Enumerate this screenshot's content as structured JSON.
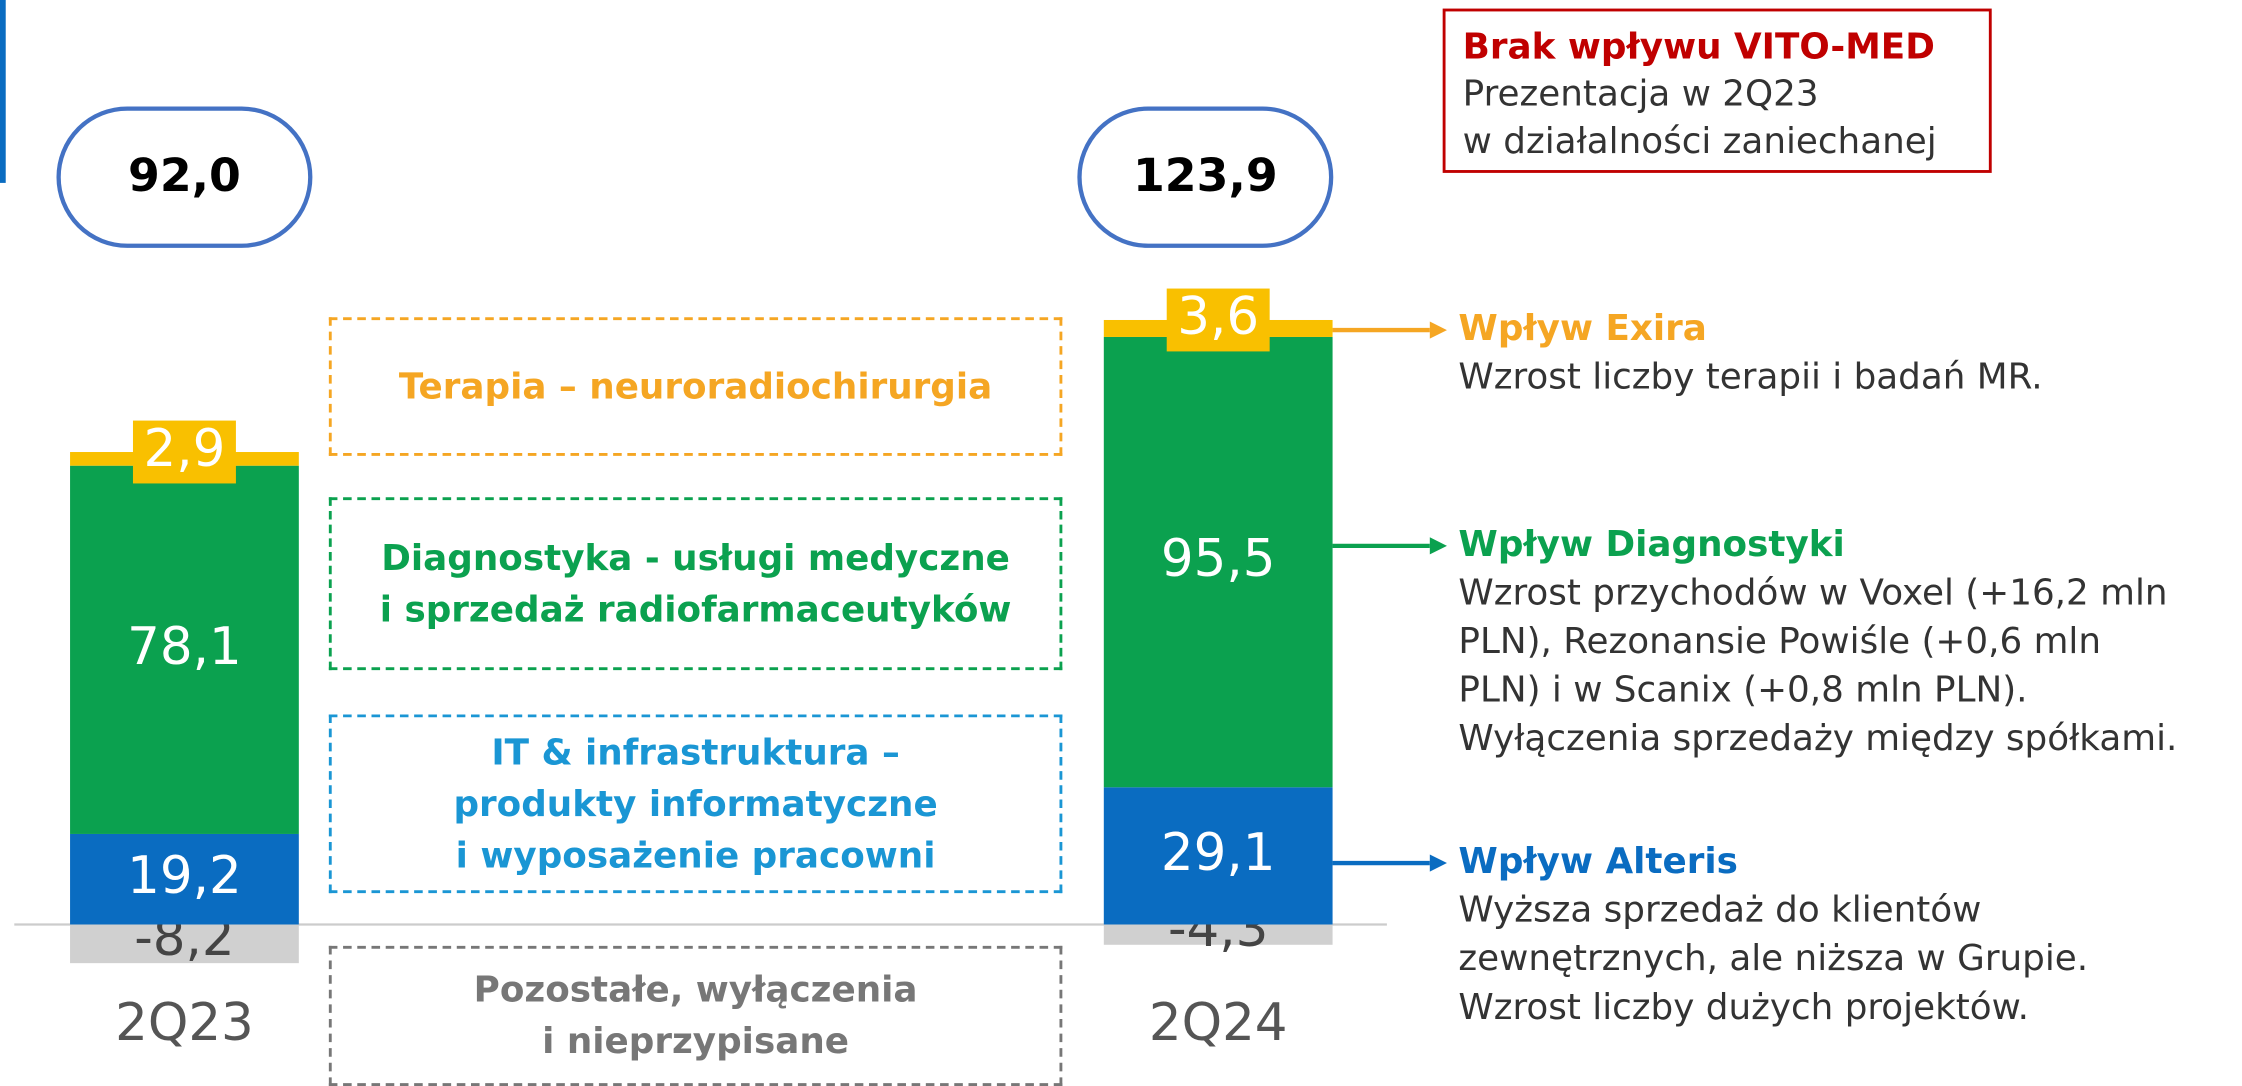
{
  "chart_data": {
    "type": "stacked_bar",
    "categories": [
      "2Q23",
      "2Q24"
    ],
    "ylim": [
      -35,
      195
    ],
    "totals": [
      92.0,
      123.9
    ],
    "total_labels": [
      "92,0",
      "123,9"
    ],
    "series": [
      {
        "name": "Pozostałe, wyłączenia\ni nieprzypisane",
        "color": "#d0d0d0",
        "text_color": "#777777",
        "values": [
          -8.2,
          -4.3
        ],
        "value_labels": [
          "-8,2",
          "-4,3"
        ]
      },
      {
        "name": "IT & infrastruktura –\nprodukty informatyczne\ni  wyposażenie pracowni",
        "color": "#0a6cc1",
        "text_color": "#1a96d4",
        "values": [
          19.2,
          29.1
        ],
        "value_labels": [
          "19,2",
          "29,1"
        ],
        "annotation": {
          "title": "Wpływ Alteris",
          "text": "Wyższa sprzedaż do klientów\nzewnętrznych, ale niższa w Grupie.\nWzrost liczby dużych projektów."
        }
      },
      {
        "name": "Diagnostyka - usługi medyczne\ni sprzedaż radiofarmaceutyków",
        "color": "#0ba14f",
        "text_color": "#0ba14f",
        "values": [
          78.1,
          95.5
        ],
        "value_labels": [
          "78,1",
          "95,5"
        ],
        "annotation": {
          "title": "Wpływ Diagnostyki",
          "text": "Wzrost przychodów w Voxel (+16,2 mln\nPLN), Rezonansie Powiśle (+0,6 mln\nPLN) i w Scanix (+0,8 mln PLN).\nWyłączenia sprzedaży między spółkami."
        }
      },
      {
        "name": "Terapia – neuroradiochirurgia",
        "color": "#f9c000",
        "text_color": "#f5a623",
        "values": [
          2.9,
          3.6
        ],
        "value_labels": [
          "2,9",
          "3,6"
        ],
        "annotation": {
          "title": "Wpływ Exira",
          "text": "Wzrost liczby terapii i badań MR."
        }
      }
    ],
    "note": {
      "title": "Brak wpływu VITO-MED",
      "text": "Prezentacja w 2Q23\nw działalności zaniechanej"
    }
  }
}
